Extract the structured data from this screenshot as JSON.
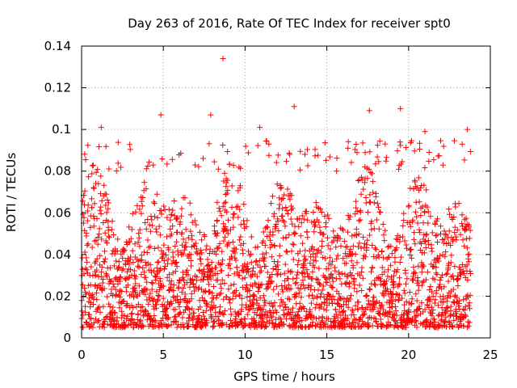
{
  "chart_data": {
    "type": "scatter",
    "title": "Day 263 of 2016, Rate Of TEC Index for receiver spt0",
    "xlabel": "GPS time / hours",
    "ylabel": "ROTI / TECUs",
    "xlim": [
      0,
      25
    ],
    "ylim": [
      0,
      0.14
    ],
    "xticks": [
      0,
      5,
      10,
      15,
      20,
      25
    ],
    "xtick_labels": [
      "0",
      "5",
      "10",
      "15",
      "20",
      "25"
    ],
    "yticks": [
      0,
      0.02,
      0.04,
      0.06,
      0.08,
      0.1,
      0.12,
      0.14
    ],
    "ytick_labels": [
      "0",
      "0.02",
      "0.04",
      "0.06",
      "0.08",
      "0.1",
      "0.12",
      "0.14"
    ],
    "grid": true,
    "marker": "+",
    "color": "#ff0000",
    "series": [
      {
        "name": "ROTI",
        "x_range": [
          0,
          23.8
        ],
        "typical_range": [
          0.005,
          0.085
        ],
        "highlights": [
          {
            "x": 8.65,
            "y": 0.134
          },
          {
            "x": 13.0,
            "y": 0.111
          },
          {
            "x": 4.85,
            "y": 0.107
          },
          {
            "x": 7.9,
            "y": 0.107
          },
          {
            "x": 17.6,
            "y": 0.109
          },
          {
            "x": 19.5,
            "y": 0.11
          },
          {
            "x": 1.2,
            "y": 0.101
          },
          {
            "x": 10.9,
            "y": 0.101
          },
          {
            "x": 23.6,
            "y": 0.1
          },
          {
            "x": 21.0,
            "y": 0.099
          }
        ]
      }
    ]
  }
}
